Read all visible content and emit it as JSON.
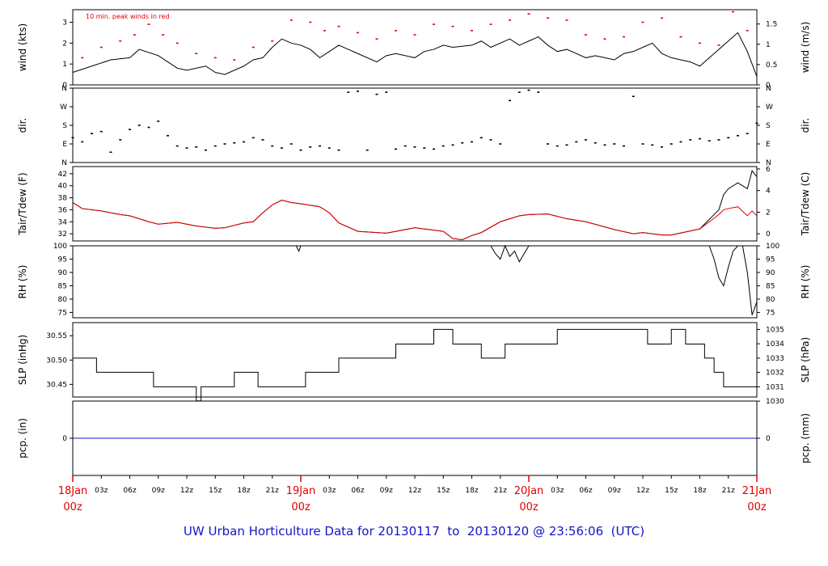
{
  "footer": "UW Urban Horticulture Data for 20130117  to  20130120 @ 23:56:06  (UTC)",
  "colors": {
    "line": "#000000",
    "peak": "#e00000",
    "dew": "#e00000",
    "pcp": "#1414c8",
    "footer": "#1414c8",
    "day": "#e00000"
  },
  "chart_data": {
    "type": "line",
    "x_axis": {
      "unit": "hours since 18Jan 00z",
      "range": [
        0,
        72
      ],
      "hour_ticks": [
        "03z",
        "06z",
        "09z",
        "12z",
        "15z",
        "18z",
        "21z",
        "03z",
        "06z",
        "09z",
        "12z",
        "15z",
        "18z",
        "21z",
        "03z",
        "06z",
        "09z",
        "12z",
        "15z",
        "18z",
        "21z"
      ],
      "hour_tick_positions": [
        3,
        6,
        9,
        12,
        15,
        18,
        21,
        27,
        30,
        33,
        36,
        39,
        42,
        45,
        51,
        54,
        57,
        60,
        63,
        66,
        69
      ],
      "day_labels": [
        {
          "day": "18Jan",
          "hour": "00z",
          "x": 0
        },
        {
          "day": "19Jan",
          "hour": "00z",
          "x": 24
        },
        {
          "day": "20Jan",
          "hour": "00z",
          "x": 48
        },
        {
          "day": "21Jan",
          "hour": "00z",
          "x": 72
        }
      ]
    },
    "panels": [
      {
        "id": "wind",
        "left_label": "wind (kts)",
        "right_label": "wind (m/s)",
        "note": "10 min. peak winds in red",
        "ylim": [
          0,
          3.6
        ],
        "left_ticks": [
          "0",
          "1",
          "2",
          "3"
        ],
        "left_tick_values": [
          0,
          1,
          2,
          3
        ],
        "right_ticks": [
          "0",
          "0.5",
          "1",
          "1.5"
        ],
        "right_tick_values": [
          0,
          0.972,
          1.944,
          2.916
        ],
        "series": [
          {
            "style": "line",
            "color": "black",
            "x": [
              0,
              2,
              4,
              6,
              7,
              9,
              10,
              11,
              12,
              14,
              15,
              16,
              18,
              19,
              20,
              21,
              22,
              23,
              24,
              25,
              26,
              27,
              28,
              29,
              30,
              32,
              33,
              34,
              36,
              37,
              38,
              39,
              40,
              42,
              43,
              44,
              45,
              46,
              47,
              48,
              49,
              50,
              51,
              52,
              54,
              55,
              56,
              57,
              58,
              59,
              60,
              61,
              62,
              63,
              64,
              65,
              66,
              67,
              68,
              69,
              70,
              71,
              72
            ],
            "y": [
              0.6,
              0.9,
              1.2,
              1.3,
              1.7,
              1.4,
              1.1,
              0.8,
              0.7,
              0.9,
              0.6,
              0.5,
              0.9,
              1.2,
              1.3,
              1.8,
              2.2,
              2.0,
              1.9,
              1.7,
              1.3,
              1.6,
              1.9,
              1.7,
              1.5,
              1.1,
              1.4,
              1.5,
              1.3,
              1.6,
              1.7,
              1.9,
              1.8,
              1.9,
              2.1,
              1.8,
              2.0,
              2.2,
              1.9,
              2.1,
              2.3,
              1.9,
              1.6,
              1.7,
              1.3,
              1.4,
              1.3,
              1.2,
              1.5,
              1.6,
              1.8,
              2.0,
              1.5,
              1.3,
              1.2,
              1.1,
              0.9,
              1.3,
              1.7,
              2.1,
              2.5,
              1.6,
              0.4
            ]
          },
          {
            "style": "points",
            "color": "red",
            "name": "10 min. peak winds",
            "x": [
              1,
              3,
              5,
              6.5,
              8,
              9.5,
              11,
              13,
              15,
              17,
              19,
              21,
              23,
              25,
              26.5,
              28,
              30,
              32,
              34,
              36,
              38,
              40,
              42,
              44,
              46,
              48,
              50,
              52,
              54,
              56,
              58,
              60,
              62,
              64,
              66,
              68,
              69.5,
              71
            ],
            "y": [
              1.3,
              1.8,
              2.1,
              2.4,
              2.9,
              2.4,
              2.0,
              1.5,
              1.3,
              1.2,
              1.8,
              2.1,
              3.1,
              3.0,
              2.6,
              2.8,
              2.5,
              2.2,
              2.6,
              2.4,
              2.9,
              2.8,
              2.6,
              2.9,
              3.1,
              3.4,
              3.2,
              3.1,
              2.4,
              2.2,
              2.3,
              3.0,
              3.2,
              2.3,
              2.0,
              1.9,
              3.5,
              2.6
            ]
          }
        ]
      },
      {
        "id": "dir",
        "left_label": "dir.",
        "right_label": "dir.",
        "ylim": [
          0,
          360
        ],
        "left_ticks": [
          "N",
          "E",
          "S",
          "W",
          "N"
        ],
        "tick_values": [
          0,
          90,
          180,
          270,
          360
        ],
        "series": [
          {
            "style": "points",
            "color": "black",
            "x": [
              0,
              1,
              2,
              3,
              4,
              5,
              6,
              7,
              8,
              9,
              10,
              11,
              12,
              13,
              14,
              15,
              16,
              17,
              18,
              19,
              20,
              21,
              22,
              23,
              24,
              25,
              26,
              27,
              28,
              29,
              30,
              31,
              32,
              33,
              34,
              35,
              36,
              37,
              38,
              39,
              40,
              41,
              42,
              43,
              44,
              45,
              46,
              47,
              48,
              49,
              50,
              51,
              52,
              53,
              54,
              55,
              56,
              57,
              58,
              59,
              60,
              61,
              62,
              63,
              64,
              65,
              66,
              67,
              68,
              69,
              70,
              71,
              72
            ],
            "y": [
              120,
              100,
              140,
              150,
              50,
              110,
              160,
              180,
              170,
              200,
              130,
              80,
              70,
              75,
              60,
              80,
              90,
              95,
              100,
              120,
              110,
              80,
              70,
              90,
              60,
              75,
              80,
              70,
              60,
              340,
              345,
              60,
              330,
              340,
              65,
              80,
              75,
              70,
              65,
              80,
              85,
              95,
              100,
              120,
              110,
              90,
              300,
              340,
              350,
              340,
              90,
              80,
              85,
              100,
              110,
              95,
              85,
              90,
              80,
              320,
              90,
              85,
              75,
              90,
              100,
              110,
              115,
              105,
              110,
              120,
              130,
              140,
              190
            ]
          }
        ]
      },
      {
        "id": "temp",
        "left_label": "Tair/Tdew (F)",
        "right_label": "Tair/Tdew (C)",
        "ylim": [
          30.8,
          43.2
        ],
        "left_ticks": [
          "32",
          "34",
          "36",
          "38",
          "40",
          "42"
        ],
        "left_tick_values": [
          32,
          34,
          36,
          38,
          40,
          42
        ],
        "right_ticks": [
          "0",
          "2",
          "4",
          "6"
        ],
        "right_tick_values": [
          32,
          35.6,
          39.2,
          42.8
        ],
        "series": [
          {
            "style": "line",
            "color": "black",
            "name": "Tair",
            "x": [
              0,
              1,
              3,
              5,
              6,
              8,
              9,
              11,
              13,
              15,
              16,
              18,
              19,
              20,
              21,
              22,
              23,
              24,
              26,
              27,
              28,
              30,
              33,
              36,
              39,
              40,
              41,
              42,
              43,
              45,
              47,
              48,
              50,
              52,
              54,
              57,
              59,
              60,
              62,
              63,
              66,
              68,
              68.5,
              69,
              70,
              71,
              71.5,
              72
            ],
            "y": [
              37.2,
              36.2,
              35.8,
              35.2,
              35.0,
              34.0,
              33.6,
              33.9,
              33.3,
              32.9,
              33.0,
              33.8,
              34.0,
              35.5,
              36.8,
              37.6,
              37.2,
              37.0,
              36.5,
              35.5,
              33.8,
              32.4,
              32.1,
              33.0,
              32.4,
              31.2,
              31.0,
              31.7,
              32.2,
              34.0,
              35.0,
              35.2,
              35.3,
              34.5,
              34.0,
              32.7,
              32.0,
              32.2,
              31.8,
              31.8,
              32.8,
              36.0,
              38.5,
              39.5,
              40.5,
              39.5,
              42.5,
              41.5
            ]
          },
          {
            "style": "line",
            "color": "red",
            "name": "Tdew",
            "x": [
              0,
              1,
              3,
              5,
              6,
              8,
              9,
              11,
              13,
              15,
              16,
              18,
              19,
              20,
              21,
              22,
              23,
              24,
              26,
              27,
              28,
              30,
              33,
              36,
              39,
              40,
              41,
              42,
              43,
              45,
              47,
              48,
              50,
              52,
              54,
              57,
              59,
              60,
              62,
              63,
              66,
              68,
              68.5,
              69,
              70,
              71,
              71.5,
              72
            ],
            "y": [
              37.2,
              36.2,
              35.8,
              35.2,
              35.0,
              34.0,
              33.6,
              33.9,
              33.3,
              32.9,
              33.0,
              33.8,
              34.0,
              35.5,
              36.8,
              37.6,
              37.2,
              37.0,
              36.5,
              35.5,
              33.8,
              32.4,
              32.1,
              33.0,
              32.4,
              31.2,
              31.0,
              31.7,
              32.2,
              34.0,
              35.0,
              35.2,
              35.3,
              34.5,
              34.0,
              32.7,
              32.0,
              32.2,
              31.8,
              31.8,
              32.8,
              35.2,
              36.0,
              36.2,
              36.5,
              35.0,
              35.8,
              35.0
            ]
          }
        ]
      },
      {
        "id": "rh",
        "left_label": "RH (%)",
        "right_label": "RH (%)",
        "ylim": [
          73,
          100
        ],
        "left_ticks": [
          "75",
          "80",
          "85",
          "90",
          "95",
          "100"
        ],
        "tick_values": [
          75,
          80,
          85,
          90,
          95,
          100
        ],
        "series": [
          {
            "style": "line",
            "color": "black",
            "x": [
              0,
              23.5,
              23.8,
              24.0,
              24.2,
              44,
              44.5,
              45,
              45.5,
              46,
              46.5,
              47,
              48,
              67,
              67.5,
              68,
              68.5,
              69,
              69.5,
              70,
              70.5,
              71,
              71.5,
              72
            ],
            "y": [
              100,
              100,
              98,
              100,
              100,
              100,
              97,
              95,
              100,
              96,
              98,
              94,
              100,
              100,
              95,
              88,
              85,
              92,
              98,
              100,
              100,
              90,
              74,
              79
            ]
          }
        ]
      },
      {
        "id": "slp",
        "left_label": "SLP (inHg)",
        "right_label": "SLP (hPa)",
        "ylim": [
          30.424,
          30.577
        ],
        "left_ticks": [
          "30.45",
          "30.50",
          "30.55"
        ],
        "left_tick_values": [
          30.45,
          30.5,
          30.55
        ],
        "right_ticks": [
          "1030",
          "1031",
          "1032",
          "1033",
          "1034",
          "1035"
        ],
        "right_tick_values": [
          30.4155,
          30.445,
          30.4745,
          30.504,
          30.5335,
          30.563
        ],
        "series": [
          {
            "style": "step",
            "color": "black",
            "x": [
              0,
              2.5,
              8.5,
              13,
              13.5,
              17,
              19.5,
              24.5,
              28,
              34,
              38,
              40,
              43,
              45.5,
              51,
              56,
              60.5,
              63,
              64.5,
              66.5,
              67.5,
              68.5,
              72
            ],
            "y": [
              30.504,
              30.475,
              30.445,
              30.416,
              30.445,
              30.475,
              30.445,
              30.475,
              30.504,
              30.533,
              30.563,
              30.533,
              30.504,
              30.533,
              30.563,
              30.563,
              30.533,
              30.563,
              30.533,
              30.504,
              30.475,
              30.445,
              30.445
            ]
          }
        ]
      },
      {
        "id": "pcp",
        "left_label": "pcp. (in)",
        "right_label": "pcp. (mm)",
        "ylim": [
          -1,
          1
        ],
        "left_ticks": [
          "0"
        ],
        "right_ticks": [
          "0"
        ],
        "tick_values": [
          0
        ],
        "series": [
          {
            "style": "line",
            "color": "blue",
            "x": [
              0,
              72
            ],
            "y": [
              0,
              0
            ]
          }
        ]
      }
    ]
  }
}
